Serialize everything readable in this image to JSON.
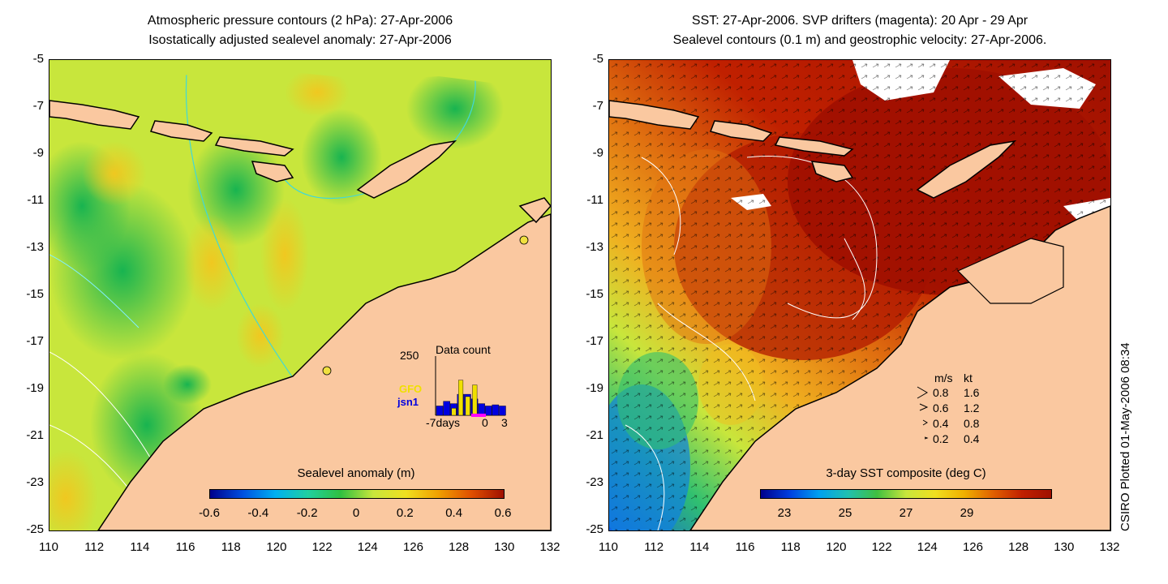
{
  "left_panel": {
    "title_line1": "Atmospheric pressure contours (2 hPa): 27-Apr-2006",
    "title_line2": "Isostatically adjusted sealevel anomaly: 27-Apr-2006",
    "y_ticks": [
      "-5",
      "-7",
      "-9",
      "-11",
      "-13",
      "-15",
      "-17",
      "-19",
      "-21",
      "-23",
      "-25"
    ],
    "x_ticks": [
      "110",
      "112",
      "114",
      "116",
      "118",
      "120",
      "122",
      "124",
      "126",
      "128",
      "130",
      "132"
    ],
    "colorbar_label": "Sealevel anomaly (m)",
    "colorbar_ticks": [
      "-0.6",
      "-0.4",
      "-0.2",
      "0",
      "0.2",
      "0.4",
      "0.6"
    ],
    "inset": {
      "title": "Data count",
      "y_max": "250",
      "x_left": "-7days",
      "x_mid": "0",
      "x_right": "3",
      "series_a": "GFO",
      "series_b": "jsn1",
      "series_a_color": "#f0e000",
      "series_b_color": "#0000e0",
      "gfo_counts": [
        0,
        0,
        30,
        150,
        80,
        130,
        0,
        0
      ],
      "jsn1_counts": [
        40,
        60,
        50,
        90,
        90,
        70,
        50,
        40,
        45,
        40
      ]
    }
  },
  "right_panel": {
    "title_line1": "SST: 27-Apr-2006. SVP drifters (magenta): 20 Apr - 29 Apr",
    "title_line2": "Sealevel contours (0.1 m) and geostrophic velocity: 27-Apr-2006.",
    "y_ticks": [
      "-5",
      "-7",
      "-9",
      "-11",
      "-13",
      "-15",
      "-17",
      "-19",
      "-21",
      "-23",
      "-25"
    ],
    "x_ticks": [
      "110",
      "112",
      "114",
      "116",
      "118",
      "120",
      "122",
      "124",
      "126",
      "128",
      "130",
      "132"
    ],
    "colorbar_label": "3-day SST composite (deg C)",
    "colorbar_ticks": [
      "23",
      "25",
      "27",
      "29"
    ],
    "velocity_legend": {
      "header_ms": "m/s",
      "header_kt": "kt",
      "rows": [
        {
          "ms": "0.8",
          "kt": "1.6"
        },
        {
          "ms": "0.6",
          "kt": "1.2"
        },
        {
          "ms": "0.4",
          "kt": "0.8"
        },
        {
          "ms": "0.2",
          "kt": "0.4"
        }
      ]
    }
  },
  "credit": "CSIRO Plotted 01-May-2006 08:34",
  "colors": {
    "land": "#fac8a0",
    "ocean_sla_base": "#c8e63c",
    "sst_hot": "#a01000",
    "contour_cyan": "#40d8d8"
  }
}
